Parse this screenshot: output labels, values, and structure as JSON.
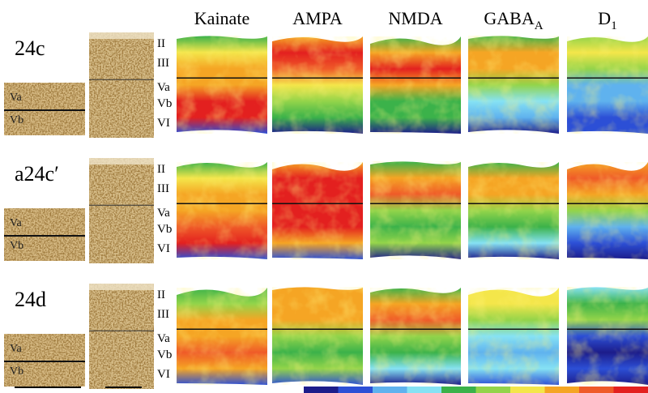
{
  "columns": [
    {
      "text": "Kainate"
    },
    {
      "text": "AMPA"
    },
    {
      "text": "NMDA"
    },
    {
      "text": "GABA",
      "sub": "A"
    },
    {
      "text": "D",
      "sub": "1"
    }
  ],
  "rows": [
    {
      "label": "24c",
      "layers": [
        "II",
        "III",
        "Va",
        "Vb",
        "VI"
      ],
      "inset_layers": [
        "Va",
        "Vb"
      ]
    },
    {
      "label": "a24c′",
      "layers": [
        "II",
        "III",
        "Va",
        "Vb",
        "VI"
      ],
      "inset_layers": [
        "Va",
        "Vb"
      ]
    },
    {
      "label": "24d",
      "layers": [
        "II",
        "III",
        "Va",
        "Vb",
        "VI"
      ],
      "inset_layers": [
        "Va",
        "Vb"
      ]
    }
  ]
}
